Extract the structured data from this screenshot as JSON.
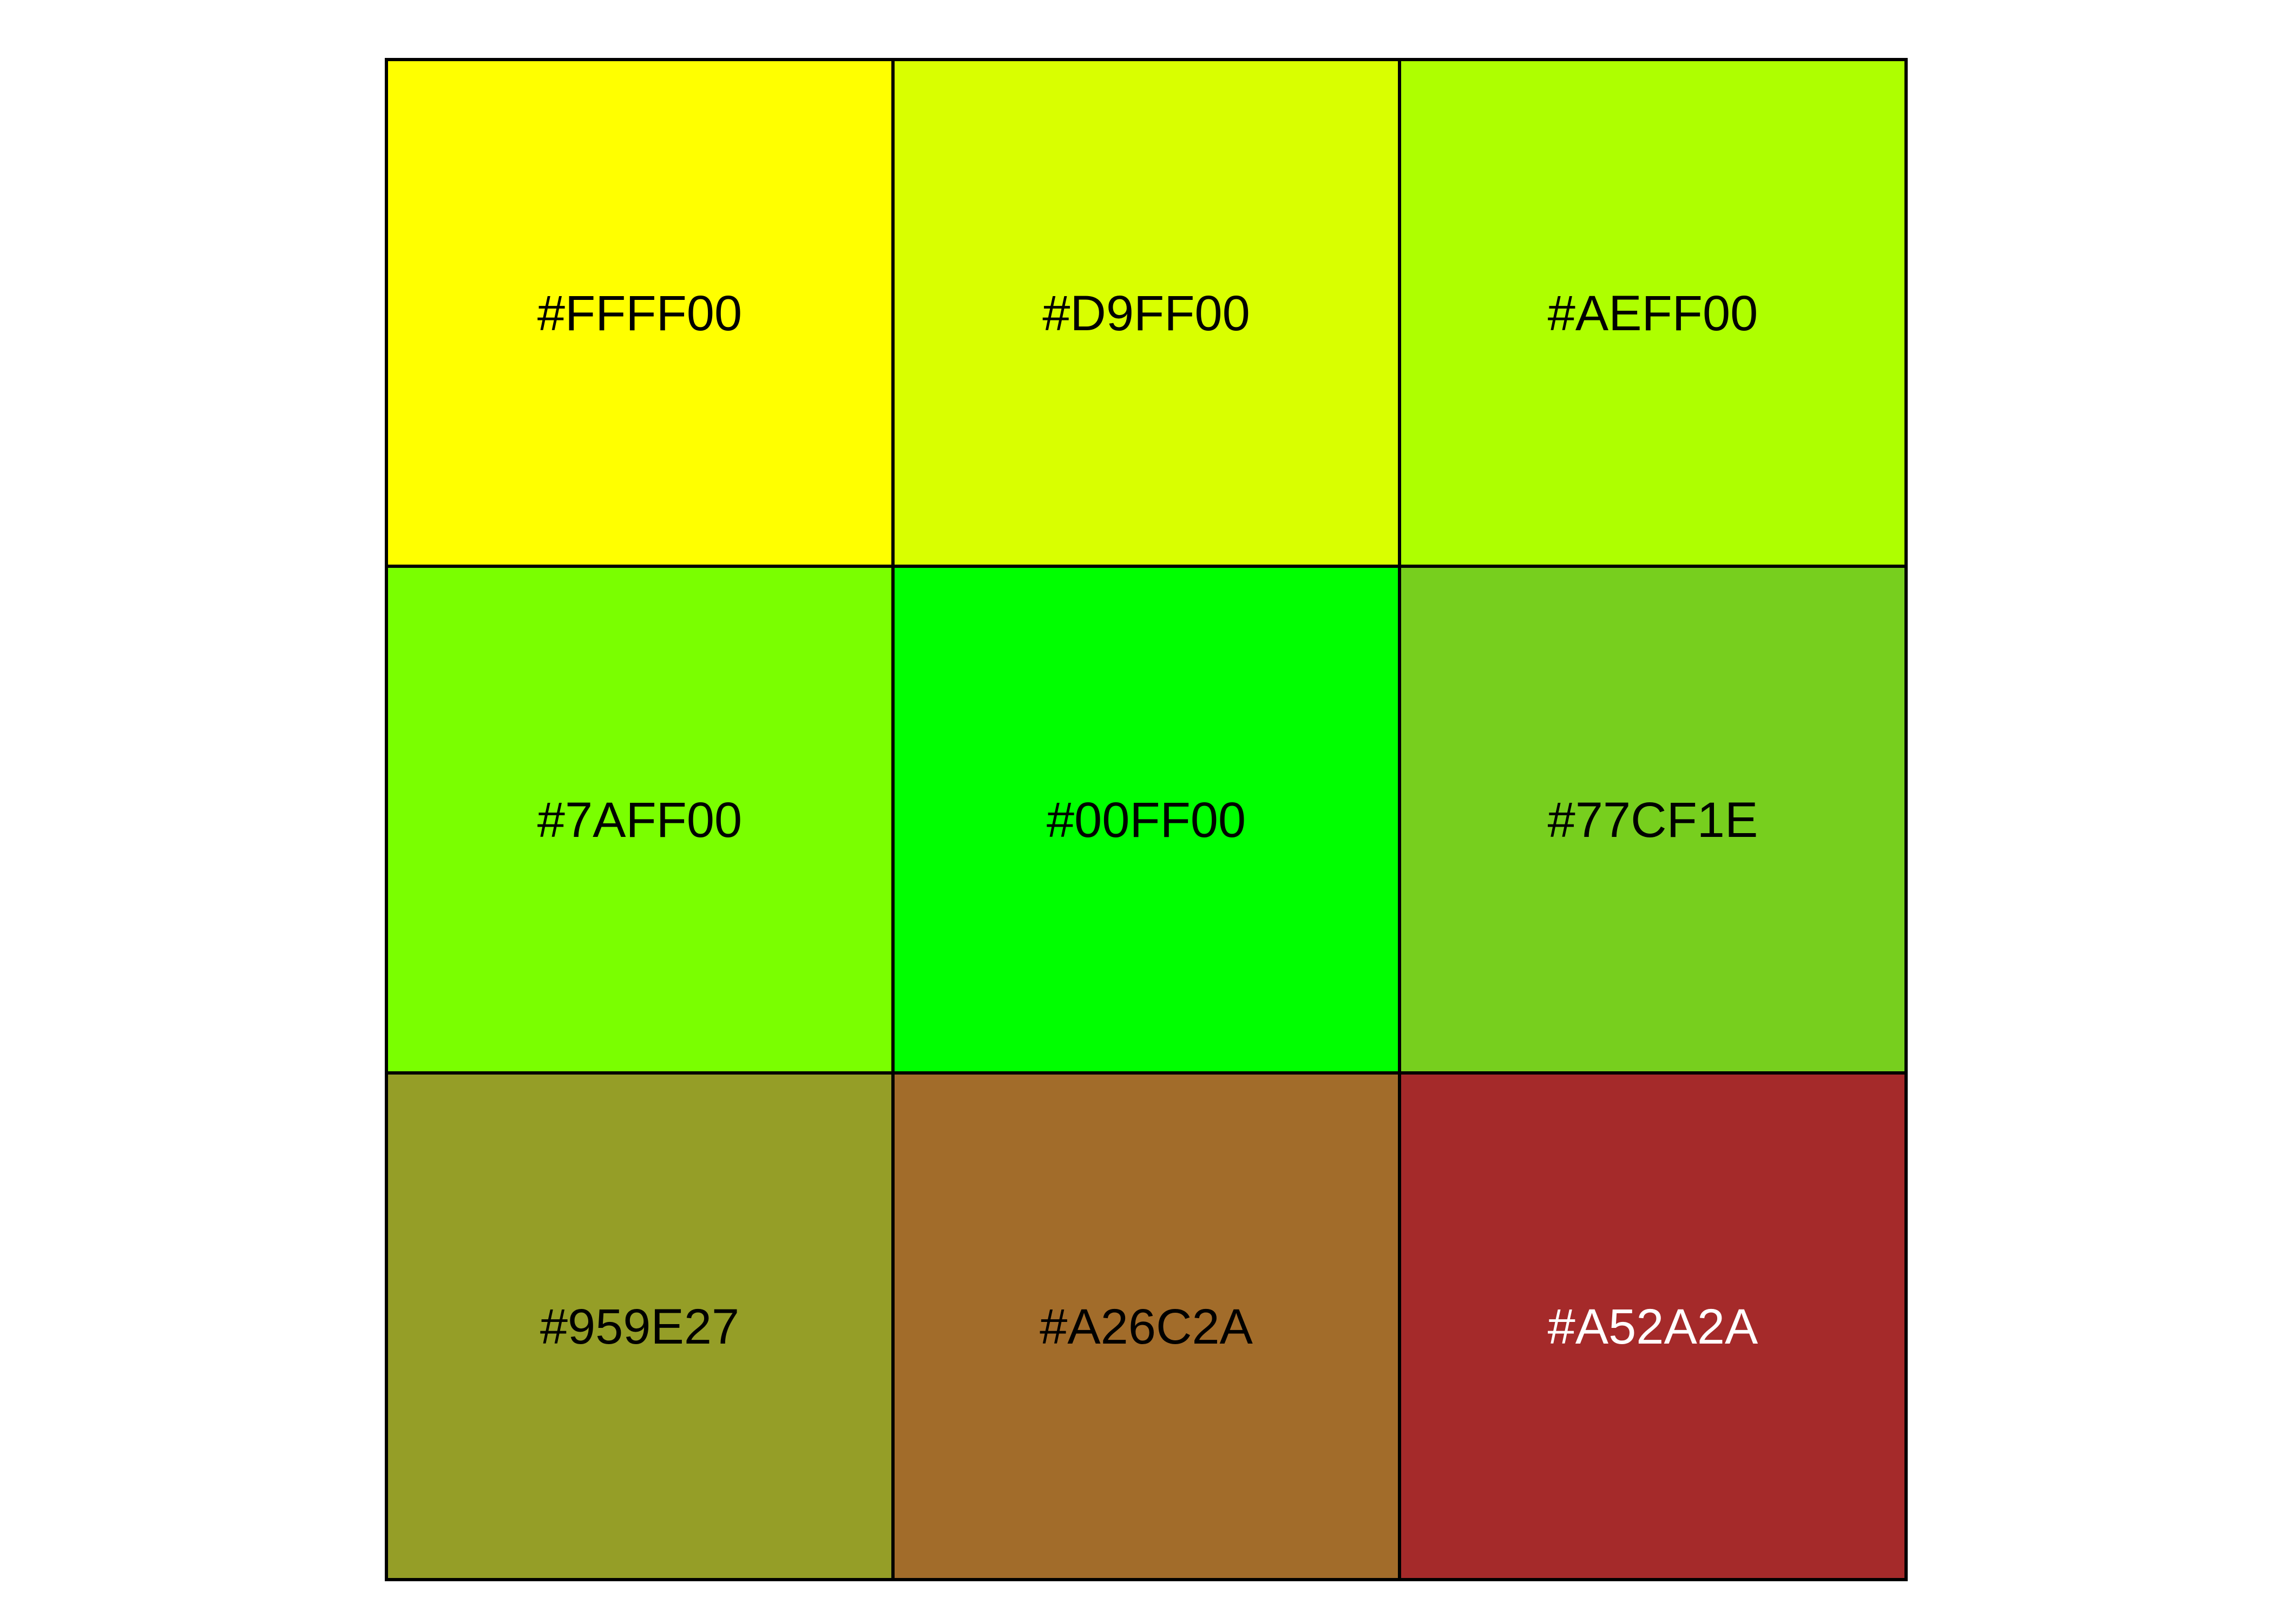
{
  "chart_data": {
    "type": "heatmap",
    "rows": 3,
    "cols": 3,
    "cells": [
      {
        "label": "#FFFF00",
        "color": "#FFFF00",
        "text_color": "#000000"
      },
      {
        "label": "#D9FF00",
        "color": "#D9FF00",
        "text_color": "#000000"
      },
      {
        "label": "#AEFF00",
        "color": "#AEFF00",
        "text_color": "#000000"
      },
      {
        "label": "#7AFF00",
        "color": "#7AFF00",
        "text_color": "#000000"
      },
      {
        "label": "#00FF00",
        "color": "#00FF00",
        "text_color": "#000000"
      },
      {
        "label": "#77CF1E",
        "color": "#77CF1E",
        "text_color": "#000000"
      },
      {
        "label": "#959E27",
        "color": "#959E27",
        "text_color": "#000000"
      },
      {
        "label": "#A26C2A",
        "color": "#A26C2A",
        "text_color": "#000000"
      },
      {
        "label": "#A52A2A",
        "color": "#A52A2A",
        "text_color": "#FFFFFF"
      }
    ],
    "grid": true,
    "legend": "none"
  }
}
